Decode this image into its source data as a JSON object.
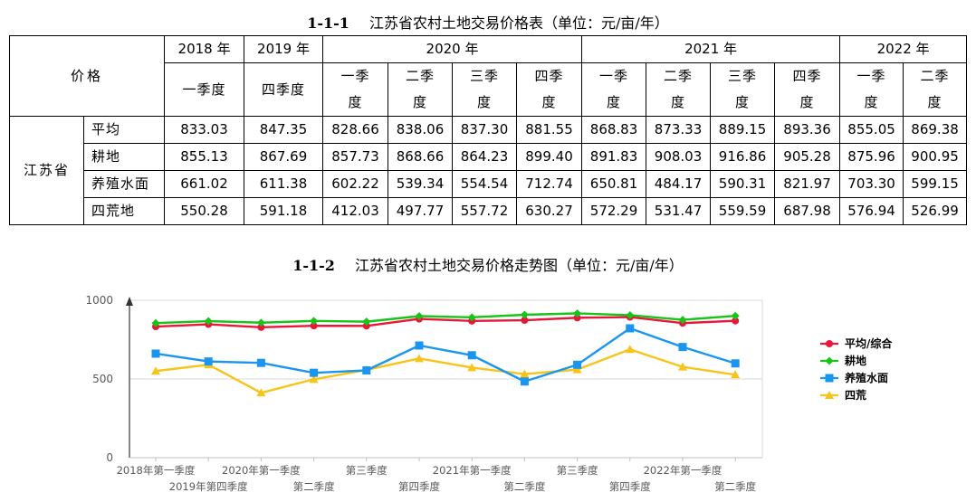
{
  "table": {
    "num": "1-1-1",
    "title": "江苏省农村土地交易价格表（单位：元/亩/年）",
    "price_label": "价格",
    "province": "江苏省",
    "years": [
      "2018 年",
      "2019 年",
      "2020 年",
      "2021 年",
      "2022 年"
    ],
    "quarters": [
      [
        "一季度"
      ],
      [
        "四季度"
      ],
      [
        "一季",
        "度"
      ],
      [
        "二季",
        "度"
      ],
      [
        "三季",
        "度"
      ],
      [
        "四季",
        "度"
      ],
      [
        "一季",
        "度"
      ],
      [
        "二季",
        "度"
      ],
      [
        "三季",
        "度"
      ],
      [
        "四季",
        "度"
      ],
      [
        "一季",
        "度"
      ],
      [
        "二季",
        "度"
      ]
    ],
    "rows": [
      {
        "label": "平均",
        "values": [
          "833.03",
          "847.35",
          "828.66",
          "838.06",
          "837.30",
          "881.55",
          "868.83",
          "873.33",
          "889.15",
          "893.36",
          "855.05",
          "869.38"
        ]
      },
      {
        "label": "耕地",
        "values": [
          "855.13",
          "867.69",
          "857.73",
          "868.66",
          "864.23",
          "899.40",
          "891.83",
          "908.03",
          "916.86",
          "905.28",
          "875.96",
          "900.95"
        ]
      },
      {
        "label": "养殖水面",
        "values": [
          "661.02",
          "611.38",
          "602.22",
          "539.34",
          "554.54",
          "712.74",
          "650.81",
          "484.17",
          "590.31",
          "821.97",
          "703.30",
          "599.15"
        ]
      },
      {
        "label": "四荒地",
        "values": [
          "550.28",
          "591.18",
          "412.03",
          "497.77",
          "557.72",
          "630.27",
          "572.29",
          "531.47",
          "559.59",
          "687.98",
          "576.94",
          "526.99"
        ]
      }
    ]
  },
  "chart_title": {
    "num": "1-1-2",
    "text": "江苏省农村土地交易价格走势图（单位：元/亩/年）"
  },
  "chart_data": {
    "type": "line",
    "ylim": [
      0,
      1000
    ],
    "yticks": [
      "0",
      "500",
      "1000"
    ],
    "x_labels_upper": [
      "2018年第一季度",
      "2020年第一季度",
      "第三季度",
      "2021年第一季度",
      "第三季度",
      "2022年第一季度"
    ],
    "x_labels_lower": [
      "2019年第四季度",
      "第二季度",
      "第四季度",
      "第二季度",
      "第四季度",
      "第二季度"
    ],
    "grid": "horizontal",
    "legend": "right",
    "series": [
      {
        "name": "平均/综合",
        "color": "#e8173a",
        "marker": "circle",
        "values": [
          833.03,
          847.35,
          828.66,
          838.06,
          837.3,
          881.55,
          868.83,
          873.33,
          889.15,
          893.36,
          855.05,
          869.38
        ]
      },
      {
        "name": "耕地",
        "color": "#17c417",
        "marker": "diamond",
        "values": [
          855.13,
          867.69,
          857.73,
          868.66,
          864.23,
          899.4,
          891.83,
          908.03,
          916.86,
          905.28,
          875.96,
          900.95
        ]
      },
      {
        "name": "养殖水面",
        "color": "#1b96f0",
        "marker": "square",
        "values": [
          661.02,
          611.38,
          602.22,
          539.34,
          554.54,
          712.74,
          650.81,
          484.17,
          590.31,
          821.97,
          703.3,
          599.15
        ]
      },
      {
        "name": "四荒",
        "color": "#f7c41a",
        "marker": "triangle",
        "values": [
          550.28,
          591.18,
          412.03,
          497.77,
          557.72,
          630.27,
          572.29,
          531.47,
          559.59,
          687.98,
          576.94,
          526.99
        ]
      }
    ]
  }
}
